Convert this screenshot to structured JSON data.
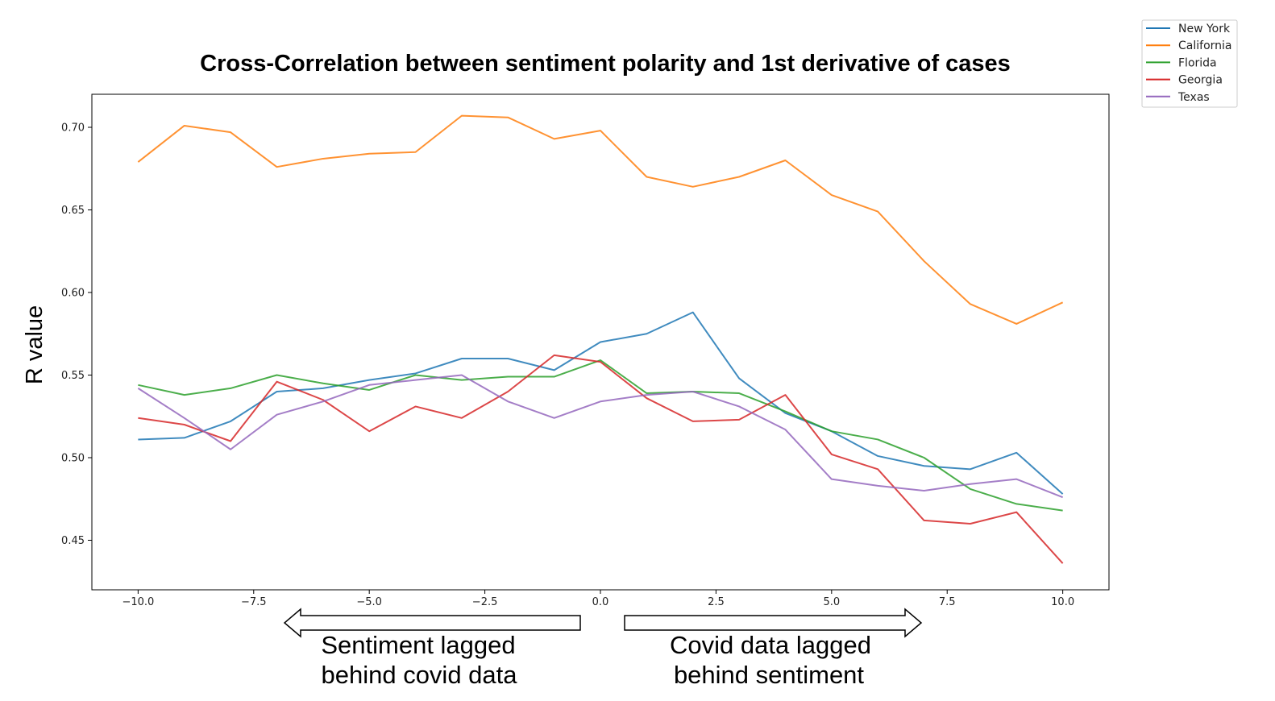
{
  "chart_data": {
    "type": "line",
    "title": "Cross-Correlation between sentiment polarity and 1st derivative of cases",
    "xlabel": "",
    "ylabel": "R value",
    "xlim": [
      -11.0,
      11.0
    ],
    "ylim": [
      0.42,
      0.72
    ],
    "x_ticks": [
      -10.0,
      -7.5,
      -5.0,
      -2.5,
      0.0,
      2.5,
      5.0,
      7.5,
      10.0
    ],
    "x_tick_labels": [
      "−10.0",
      "−7.5",
      "−5.0",
      "−2.5",
      "0.0",
      "2.5",
      "5.0",
      "7.5",
      "10.0"
    ],
    "y_ticks": [
      0.45,
      0.5,
      0.55,
      0.6,
      0.65,
      0.7
    ],
    "y_tick_labels": [
      "0.45",
      "0.50",
      "0.55",
      "0.60",
      "0.65",
      "0.70"
    ],
    "grid": false,
    "legend_position": "top-right",
    "x": [
      -10,
      -9,
      -8,
      -7,
      -6,
      -5,
      -4,
      -3,
      -2,
      -1,
      0,
      1,
      2,
      3,
      4,
      5,
      6,
      7,
      8,
      9,
      10
    ],
    "series": [
      {
        "name": "New York",
        "color": "#1f77b4",
        "values": [
          0.511,
          0.512,
          0.522,
          0.54,
          0.542,
          0.547,
          0.551,
          0.56,
          0.56,
          0.553,
          0.57,
          0.575,
          0.588,
          0.548,
          0.527,
          0.516,
          0.501,
          0.495,
          0.493,
          0.503,
          0.478
        ]
      },
      {
        "name": "California",
        "color": "#ff7f0e",
        "values": [
          0.679,
          0.701,
          0.697,
          0.676,
          0.681,
          0.684,
          0.685,
          0.707,
          0.706,
          0.693,
          0.698,
          0.67,
          0.664,
          0.67,
          0.68,
          0.659,
          0.649,
          0.619,
          0.593,
          0.581,
          0.594
        ]
      },
      {
        "name": "Florida",
        "color": "#2ca02c",
        "values": [
          0.544,
          0.538,
          0.542,
          0.55,
          0.545,
          0.541,
          0.55,
          0.547,
          0.549,
          0.549,
          0.559,
          0.539,
          0.54,
          0.539,
          0.528,
          0.516,
          0.511,
          0.5,
          0.481,
          0.472,
          0.468
        ]
      },
      {
        "name": "Georgia",
        "color": "#d62728",
        "values": [
          0.524,
          0.52,
          0.51,
          0.546,
          0.535,
          0.516,
          0.531,
          0.524,
          0.54,
          0.562,
          0.558,
          0.536,
          0.522,
          0.523,
          0.538,
          0.502,
          0.493,
          0.462,
          0.46,
          0.467,
          0.436
        ]
      },
      {
        "name": "Texas",
        "color": "#9467bd",
        "values": [
          0.542,
          0.524,
          0.505,
          0.526,
          0.534,
          0.544,
          0.547,
          0.55,
          0.534,
          0.524,
          0.534,
          0.538,
          0.54,
          0.531,
          0.517,
          0.487,
          0.483,
          0.48,
          0.484,
          0.487,
          0.476
        ]
      }
    ],
    "annotations": {
      "left_arrow_line1": "Sentiment lagged",
      "left_arrow_line2": "behind covid data",
      "right_arrow_line1": "Covid data lagged",
      "right_arrow_line2": "behind sentiment"
    }
  }
}
